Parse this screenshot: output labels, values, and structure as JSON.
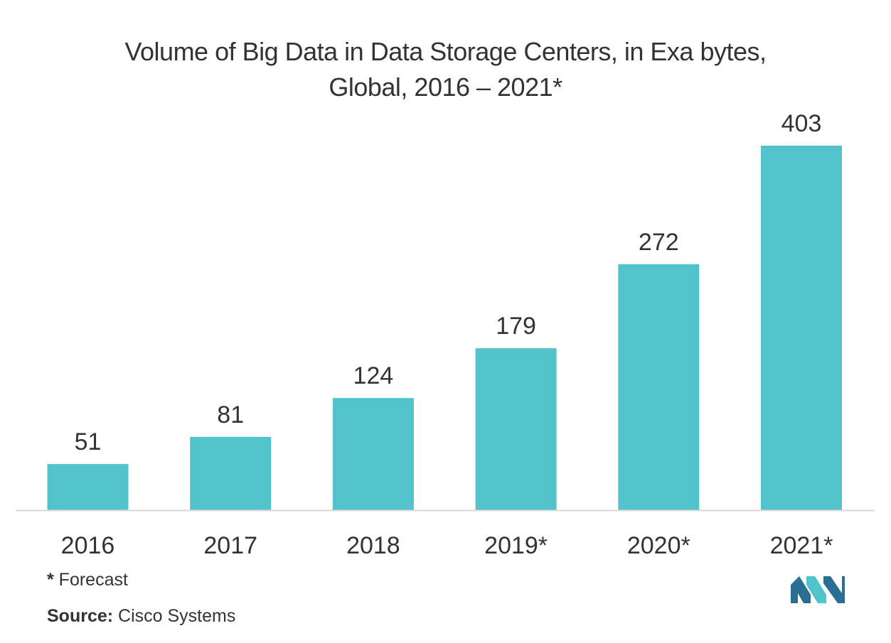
{
  "title_lines": [
    "Volume of Big Data in Data Storage Centers, in Exa bytes,",
    "Global, 2016 – 2021*"
  ],
  "footnote": {
    "marker": "*",
    "text": " Forecast"
  },
  "source": {
    "label": "Source:",
    "text": " Cisco Systems"
  },
  "colors": {
    "bar": "#52c3ca",
    "axis": "#d9d9d9",
    "text": "#333333",
    "logo_dark": "#2b6e93",
    "logo_light": "#52c3ca"
  },
  "chart_data": {
    "type": "bar",
    "title": "Volume of Big Data in Data Storage Centers, in Exa bytes, Global, 2016 – 2021*",
    "categories": [
      "2016",
      "2017",
      "2018",
      "2019*",
      "2020*",
      "2021*"
    ],
    "values": [
      51,
      81,
      124,
      179,
      272,
      403
    ],
    "data_labels": [
      "51",
      "81",
      "124",
      "179",
      "272",
      "403"
    ],
    "xlabel": "",
    "ylabel": "",
    "ylim": [
      0,
      403
    ],
    "grid": false,
    "legend": "none"
  }
}
